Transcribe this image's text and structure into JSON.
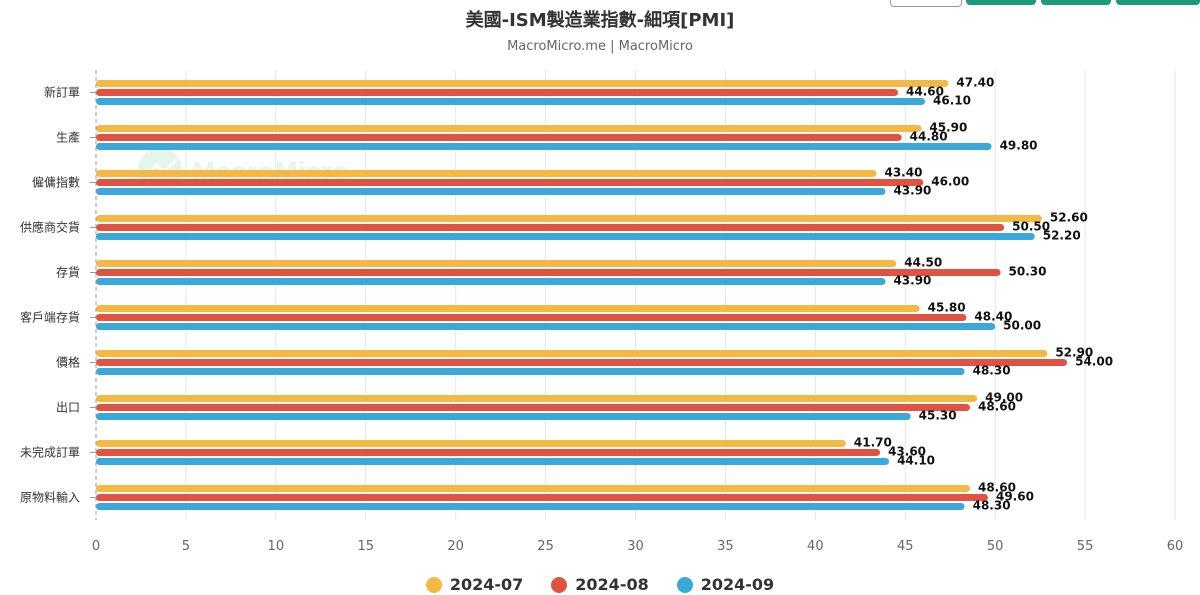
{
  "header": {
    "title": "美國-ISM製造業指數-細項[PMI]",
    "subtitle": "MacroMicro.me | MacroMicro"
  },
  "watermark": "MacroMicro",
  "colors": {
    "series_1": "#f4b942",
    "series_2": "#e05241",
    "series_3": "#3aa8d8",
    "grid": "#e6e6e6",
    "axis": "#999999",
    "text": "#333333",
    "tick": "#666666"
  },
  "chart_data": {
    "type": "bar",
    "orientation": "horizontal",
    "title": "美國-ISM製造業指數-細項[PMI]",
    "subtitle": "MacroMicro.me | MacroMicro",
    "categories": [
      "新訂單",
      "生產",
      "僱傭指數",
      "供應商交貨",
      "存貨",
      "客戶端存貨",
      "價格",
      "出口",
      "未完成訂單",
      "原物料輸入"
    ],
    "series": [
      {
        "name": "2024-07",
        "values": [
          47.4,
          45.9,
          43.4,
          52.6,
          44.5,
          45.8,
          52.9,
          49.0,
          41.7,
          48.6
        ]
      },
      {
        "name": "2024-08",
        "values": [
          44.6,
          44.8,
          46.0,
          50.5,
          50.3,
          48.4,
          54.0,
          48.6,
          43.6,
          49.6
        ]
      },
      {
        "name": "2024-09",
        "values": [
          46.1,
          49.8,
          43.9,
          52.2,
          43.9,
          50.0,
          48.3,
          45.3,
          44.1,
          48.3
        ]
      }
    ],
    "value_labels": [
      [
        "47.40",
        "45.90",
        "43.40",
        "52.60",
        "44.50",
        "45.80",
        "52.90",
        "49.00",
        "41.70",
        "48.60"
      ],
      [
        "44.60",
        "44.80",
        "46.00",
        "50.50",
        "50.30",
        "48.40",
        "54.00",
        "48.60",
        "43.60",
        "49.60"
      ],
      [
        "46.10",
        "49.80",
        "43.90",
        "52.20",
        "43.90",
        "50.00",
        "48.30",
        "45.30",
        "44.10",
        "48.30"
      ]
    ],
    "xlim": [
      0,
      60
    ],
    "xticks": [
      0,
      5,
      10,
      15,
      20,
      25,
      30,
      35,
      40,
      45,
      50,
      55,
      60
    ],
    "xlabel": "",
    "ylabel": "",
    "grid": true,
    "legend": "bottom-center"
  }
}
